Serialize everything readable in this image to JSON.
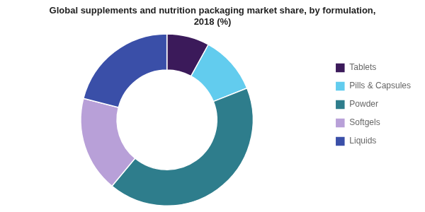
{
  "chart_data": {
    "type": "doughnut",
    "title": "Global supplements and nutrition packaging market share, by formulation,\n2018 (%)",
    "categories": [
      "Tablets",
      "Pills & Capsules",
      "Powder",
      "Softgels",
      "Liquids"
    ],
    "values": [
      8,
      11,
      42,
      18,
      21
    ],
    "colors": [
      "#3b1a5a",
      "#62ccee",
      "#2e7d8c",
      "#b8a0d8",
      "#3a4fa8"
    ],
    "legend": "right"
  }
}
